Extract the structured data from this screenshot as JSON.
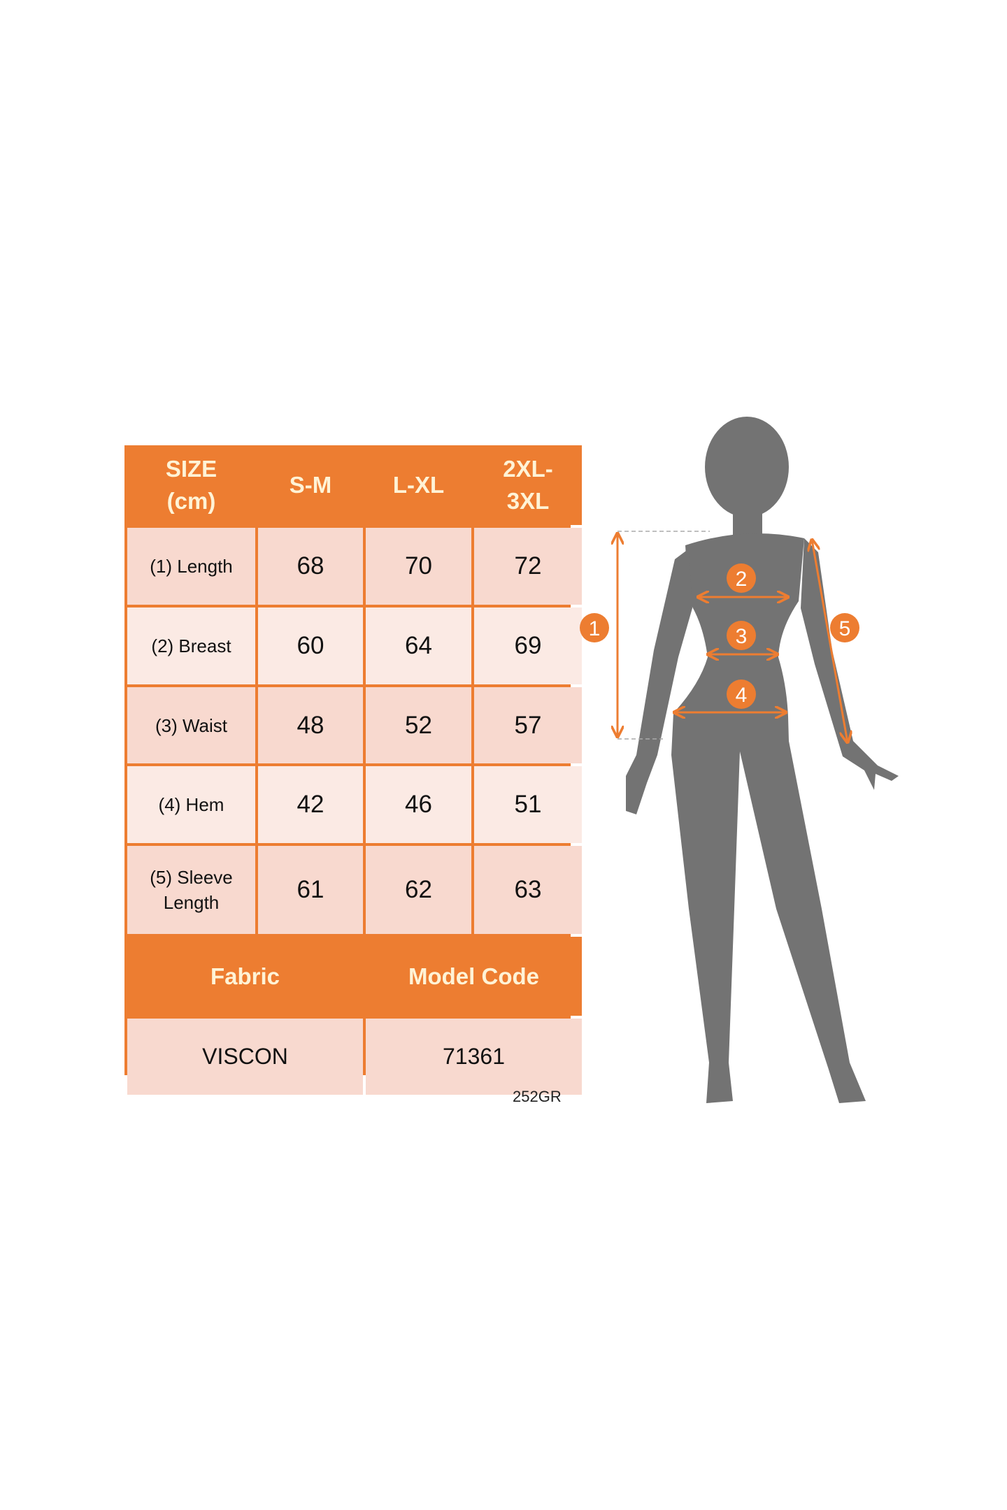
{
  "colors": {
    "accent": "#ED7D31",
    "cell": "#F8D9CF",
    "cell_light": "#FBEAE4",
    "silhouette": "#737373",
    "header_text": "#FFF3D6"
  },
  "table": {
    "header": [
      "SIZE\n(cm)",
      "S-M",
      "L-XL",
      "2XL-\n3XL"
    ],
    "rows": [
      {
        "label": "(1) Length",
        "values": [
          "68",
          "70",
          "72"
        ]
      },
      {
        "label": "(2) Breast",
        "values": [
          "60",
          "64",
          "69"
        ]
      },
      {
        "label": "(3) Waist",
        "values": [
          "48",
          "52",
          "57"
        ]
      },
      {
        "label": "(4) Hem",
        "values": [
          "42",
          "46",
          "51"
        ]
      },
      {
        "label": "(5) Sleeve\nLength",
        "values": [
          "61",
          "62",
          "63"
        ]
      }
    ],
    "footer_headers": [
      "Fabric",
      "Model Code"
    ],
    "footer_values": [
      "VISCON",
      "71361"
    ]
  },
  "code": "252GR",
  "figure": {
    "markers": [
      "1",
      "2",
      "3",
      "4",
      "5"
    ]
  }
}
